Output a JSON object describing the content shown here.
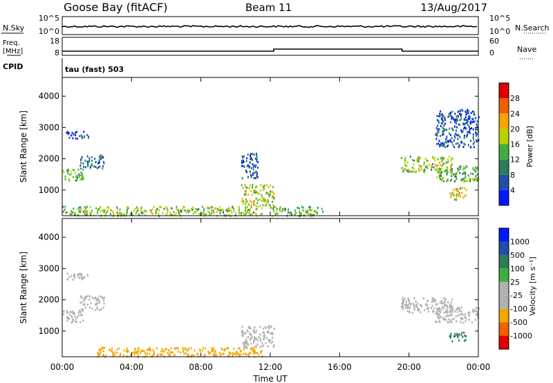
{
  "header": {
    "station": "Goose Bay (fitACF)",
    "beam": "Beam 11",
    "date": "13/Aug/2017"
  },
  "top_panels": {
    "nsky_label": "N.Sky",
    "nsearch_label": "N.Search",
    "freq_label_line1": "Freq.",
    "freq_label_line2": "[MHz]",
    "nave_label": "Nave",
    "cpid_label": "CPID",
    "cpid_value": "tau (fast) 503",
    "noise_ticks_left": [
      "10^5",
      "10^0"
    ],
    "noise_ticks_right": [
      "10^5",
      "10^0"
    ],
    "freq_ticks": [
      "18",
      "8"
    ],
    "nave_ticks": [
      "60",
      "0"
    ]
  },
  "colors": {
    "power_scale": [
      "#0018ff",
      "#1f4fa8",
      "#2e7d5a",
      "#3fae3f",
      "#b9d000",
      "#f2a600",
      "#f06000",
      "#e00000"
    ],
    "velocity_scale": [
      "#e00000",
      "#f06000",
      "#f2a600",
      "#b0b0b0",
      "#b0b0b0",
      "#3fae3f",
      "#2e7d5a",
      "#1f4fa8",
      "#0018ff"
    ]
  },
  "chart_data": [
    {
      "type": "heatmap",
      "name": "power",
      "ylabel": "Slant Range [km]",
      "xlim": [
        "00:00",
        "24:00"
      ],
      "ylim": [
        180,
        4600
      ],
      "yticks": [
        "1000",
        "2000",
        "3000",
        "4000"
      ],
      "colorbar_label": "Power [dB]",
      "colorbar_ticks": [
        "4",
        "8",
        "12",
        "16",
        "20",
        "24",
        "28"
      ],
      "echo_regions": [
        {
          "t_start": 0.0,
          "t_end": 1.2,
          "range_min": 1300,
          "range_max": 1700,
          "value": 14
        },
        {
          "t_start": 0.2,
          "t_end": 1.5,
          "range_min": 2650,
          "range_max": 2900,
          "value": 6
        },
        {
          "t_start": 1.0,
          "t_end": 2.4,
          "range_min": 1700,
          "range_max": 2150,
          "value": 8
        },
        {
          "t_start": 0.0,
          "t_end": 11.5,
          "range_min": 200,
          "range_max": 500,
          "value": 16
        },
        {
          "t_start": 10.3,
          "t_end": 12.2,
          "range_min": 500,
          "range_max": 1200,
          "value": 18
        },
        {
          "t_start": 10.3,
          "t_end": 11.3,
          "range_min": 1400,
          "range_max": 2200,
          "value": 6
        },
        {
          "t_start": 12.0,
          "t_end": 15.0,
          "range_min": 200,
          "range_max": 500,
          "value": 14
        },
        {
          "t_start": 19.5,
          "t_end": 22.5,
          "range_min": 1600,
          "range_max": 2100,
          "value": 16
        },
        {
          "t_start": 21.5,
          "t_end": 24.0,
          "range_min": 1300,
          "range_max": 1800,
          "value": 14
        },
        {
          "t_start": 22.3,
          "t_end": 23.3,
          "range_min": 700,
          "range_max": 1100,
          "value": 20
        },
        {
          "t_start": 21.5,
          "t_end": 24.0,
          "range_min": 2400,
          "range_max": 3600,
          "value": 6
        }
      ]
    },
    {
      "type": "heatmap",
      "name": "velocity",
      "xlabel": "Time UT",
      "ylabel": "Slant Range [km]",
      "xlim": [
        "00:00",
        "24:00"
      ],
      "ylim": [
        180,
        4600
      ],
      "yticks": [
        "1000",
        "2000",
        "3000",
        "4000"
      ],
      "xticks": [
        "00:00",
        "04:00",
        "08:00",
        "12:00",
        "16:00",
        "20:00",
        "00:00"
      ],
      "colorbar_label": "Velocity [m s⁻¹]",
      "colorbar_ticks": [
        "-1000",
        "-500",
        "-100",
        "-25",
        "25",
        "100",
        "500",
        "1000"
      ],
      "echo_regions": [
        {
          "t_start": 0.0,
          "t_end": 1.2,
          "range_min": 1300,
          "range_max": 1700,
          "value": 0
        },
        {
          "t_start": 0.2,
          "t_end": 1.5,
          "range_min": 2650,
          "range_max": 2900,
          "value": 0
        },
        {
          "t_start": 1.0,
          "t_end": 2.4,
          "range_min": 1700,
          "range_max": 2150,
          "value": 0
        },
        {
          "t_start": 2.0,
          "t_end": 11.5,
          "range_min": 200,
          "range_max": 500,
          "value": -200
        },
        {
          "t_start": 10.3,
          "t_end": 12.2,
          "range_min": 500,
          "range_max": 1200,
          "value": 0
        },
        {
          "t_start": 19.5,
          "t_end": 22.5,
          "range_min": 1600,
          "range_max": 2100,
          "value": 0
        },
        {
          "t_start": 21.5,
          "t_end": 24.0,
          "range_min": 1300,
          "range_max": 1800,
          "value": 0
        },
        {
          "t_start": 22.3,
          "t_end": 23.3,
          "range_min": 700,
          "range_max": 1000,
          "value": 300
        }
      ]
    }
  ]
}
